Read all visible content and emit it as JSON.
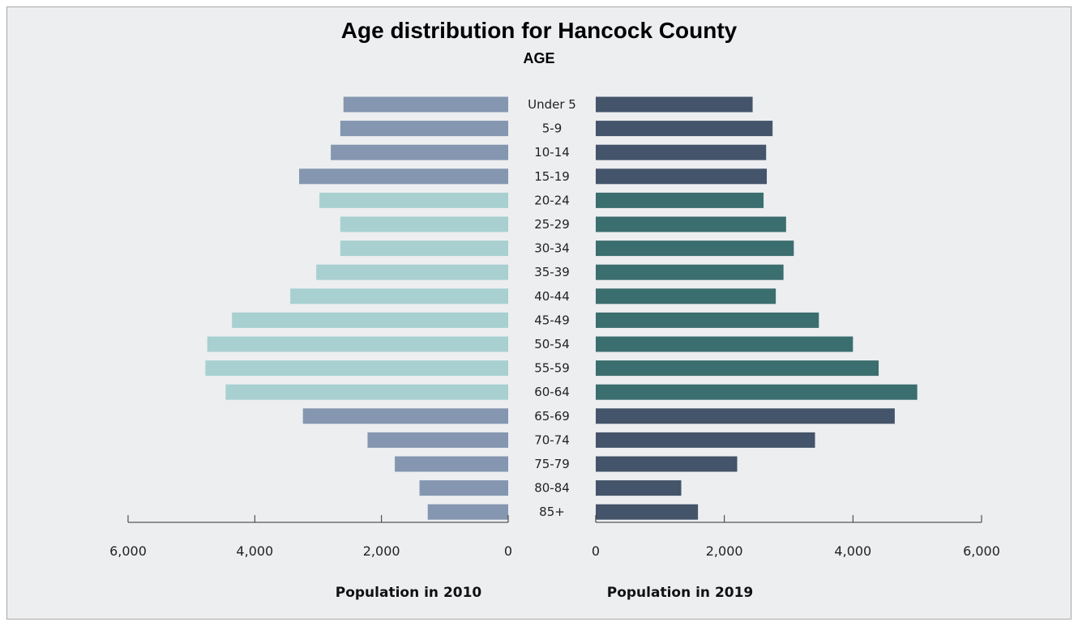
{
  "chart_data": {
    "type": "bar",
    "title": "Age distribution for Hancock County",
    "subtitle": "AGE",
    "categories": [
      "Under 5",
      "5-9",
      "10-14",
      "15-19",
      "20-24",
      "25-29",
      "30-34",
      "35-39",
      "40-44",
      "45-49",
      "50-54",
      "55-59",
      "60-64",
      "65-69",
      "70-74",
      "75-79",
      "80-84",
      "85+"
    ],
    "series": [
      {
        "name": "Population in 2010",
        "side": "left",
        "values": [
          2600,
          2650,
          2800,
          3300,
          2980,
          2650,
          2650,
          3030,
          3440,
          4360,
          4750,
          4780,
          4460,
          3240,
          2220,
          1790,
          1400,
          1270
        ]
      },
      {
        "name": "Population in 2019",
        "side": "right",
        "values": [
          2440,
          2750,
          2650,
          2660,
          2610,
          2960,
          3080,
          2920,
          2800,
          3470,
          4000,
          4400,
          5000,
          4650,
          3410,
          2200,
          1330,
          1590
        ]
      }
    ],
    "group_colors": {
      "young_old": {
        "left": "#8496b0",
        "right": "#44546a"
      },
      "working": {
        "left": "#a8d0d0",
        "right": "#3b6e6e"
      }
    },
    "working_age_categories": [
      "20-24",
      "25-29",
      "30-34",
      "35-39",
      "40-44",
      "45-49",
      "50-54",
      "55-59",
      "60-64"
    ],
    "left_axis": {
      "xlim": [
        0,
        6000
      ],
      "ticks": [
        6000,
        4000,
        2000,
        0
      ],
      "tick_labels": [
        "6,000",
        "4,000",
        "2,000",
        "0"
      ],
      "label": "Population in 2010"
    },
    "right_axis": {
      "xlim": [
        0,
        6000
      ],
      "ticks": [
        0,
        2000,
        4000,
        6000
      ],
      "tick_labels": [
        "0",
        "2,000",
        "4,000",
        "6,000"
      ],
      "label": "Population in 2019"
    },
    "grid": false,
    "legend": "none"
  }
}
